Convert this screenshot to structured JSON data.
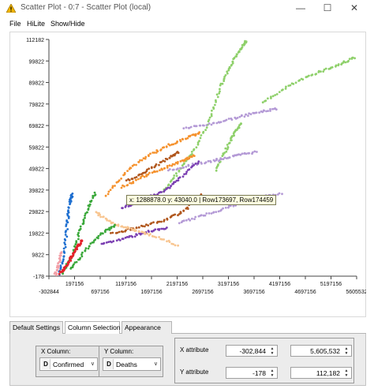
{
  "window": {
    "title": "Scatter Plot - 0:7 - Scatter Plot (local)",
    "minimize_glyph": "—",
    "maximize_glyph": "☐",
    "close_glyph": "✕",
    "title_icon": "warning-triangle-icon"
  },
  "menu": {
    "file": "File",
    "hilite": "HiLite",
    "show_hide": "Show/Hide"
  },
  "plot": {
    "tooltip": "x: 1288878.0 y: 43040.0 | Row173697, Row174459",
    "colors": {
      "red": "#e4202a",
      "green": "#3aa83a",
      "blue": "#1e6fd0",
      "orange": "#f5922e",
      "light_orange": "#f8c590",
      "purple": "#7b3fb2",
      "brown": "#b0561c",
      "pink": "#f2a0a8",
      "light_green": "#8ed06a",
      "light_purple": "#b49ad6"
    }
  },
  "chart_data": {
    "type": "scatter",
    "xlabel": "Confirmed",
    "ylabel": "Deaths",
    "xlim": [
      -302844,
      5605532
    ],
    "ylim": [
      -178,
      112182
    ],
    "x_ticks": [
      "-302844",
      "197156",
      "697156",
      "1197156",
      "1697156",
      "2197156",
      "2697156",
      "3197156",
      "3697156",
      "4197156",
      "4697156",
      "5197156",
      "5605532"
    ],
    "y_ticks": [
      "-178",
      "9822",
      "19822",
      "29822",
      "39822",
      "49822",
      "59822",
      "69822",
      "79822",
      "89822",
      "99822",
      "112182"
    ],
    "series": [
      {
        "color": "#8ed06a",
        "points": [
          [
            1900000,
            40000
          ],
          [
            2200000,
            50000
          ],
          [
            2500000,
            60000
          ],
          [
            2800000,
            75000
          ],
          [
            3000000,
            90000
          ],
          [
            3200000,
            100000
          ],
          [
            3350000,
            107000
          ],
          [
            3500000,
            112000
          ]
        ]
      },
      {
        "color": "#8ed06a",
        "points": [
          [
            3800000,
            82000
          ],
          [
            4300000,
            90000
          ],
          [
            4800000,
            96000
          ],
          [
            5250000,
            100000
          ],
          [
            5600000,
            104000
          ]
        ]
      },
      {
        "color": "#8ed06a",
        "points": [
          [
            2900000,
            50000
          ],
          [
            3100000,
            60000
          ],
          [
            3250000,
            67000
          ],
          [
            3400000,
            73000
          ]
        ]
      },
      {
        "color": "#b49ad6",
        "points": [
          [
            2300000,
            70000
          ],
          [
            2800000,
            72000
          ],
          [
            3300000,
            75000
          ],
          [
            3700000,
            77500
          ],
          [
            4100000,
            79500
          ]
        ]
      },
      {
        "color": "#b49ad6",
        "points": [
          [
            2900000,
            55000
          ],
          [
            3300000,
            57000
          ],
          [
            3700000,
            59000
          ]
        ]
      },
      {
        "color": "#b49ad6",
        "points": [
          [
            2000000,
            50000
          ],
          [
            2500000,
            53000
          ],
          [
            3000000,
            55000
          ]
        ]
      },
      {
        "color": "#b49ad6",
        "points": [
          [
            2200000,
            25000
          ],
          [
            2700000,
            29000
          ],
          [
            3200000,
            33000
          ],
          [
            3700000,
            37000
          ],
          [
            4200000,
            39000
          ]
        ]
      },
      {
        "color": "#f5922e",
        "points": [
          [
            800000,
            38000
          ],
          [
            1200000,
            50000
          ],
          [
            1600000,
            57000
          ],
          [
            2000000,
            62000
          ],
          [
            2400000,
            66000
          ],
          [
            2600000,
            68000
          ]
        ]
      },
      {
        "color": "#f5922e",
        "points": [
          [
            1100000,
            42000
          ],
          [
            1500000,
            47000
          ],
          [
            1900000,
            51000
          ],
          [
            2300000,
            55000
          ],
          [
            2500000,
            57000
          ]
        ]
      },
      {
        "color": "#b0561c",
        "points": [
          [
            1200000,
            45000
          ],
          [
            1600000,
            50000
          ],
          [
            2000000,
            56000
          ],
          [
            2200000,
            59000
          ]
        ]
      },
      {
        "color": "#b0561c",
        "points": [
          [
            900000,
            20000
          ],
          [
            1400000,
            23000
          ],
          [
            1900000,
            26000
          ],
          [
            2300000,
            31000
          ],
          [
            2650000,
            39000
          ]
        ]
      },
      {
        "color": "#7b3fb2",
        "points": [
          [
            1100000,
            32000
          ],
          [
            1500000,
            36000
          ],
          [
            1900000,
            40000
          ],
          [
            2200000,
            46000
          ],
          [
            2600000,
            55000
          ]
        ]
      },
      {
        "color": "#7b3fb2",
        "points": [
          [
            700000,
            15000
          ],
          [
            1200000,
            18000
          ],
          [
            1600000,
            21000
          ],
          [
            2000000,
            22500
          ]
        ]
      },
      {
        "color": "#f8c590",
        "points": [
          [
            600000,
            30000
          ],
          [
            900000,
            25000
          ],
          [
            1300000,
            22000
          ],
          [
            1700000,
            19000
          ],
          [
            2200000,
            14000
          ]
        ]
      },
      {
        "color": "#3aa83a",
        "points": [
          [
            -50000,
            1000
          ],
          [
            150000,
            10000
          ],
          [
            300000,
            22000
          ],
          [
            450000,
            32000
          ],
          [
            600000,
            40000
          ]
        ]
      },
      {
        "color": "#3aa83a",
        "points": [
          [
            100000,
            3000
          ],
          [
            400000,
            12000
          ],
          [
            700000,
            20000
          ],
          [
            1000000,
            24000
          ]
        ]
      },
      {
        "color": "#1e6fd0",
        "points": [
          [
            -100000,
            1000
          ],
          [
            0,
            12000
          ],
          [
            50000,
            25000
          ],
          [
            100000,
            35000
          ],
          [
            150000,
            39000
          ]
        ]
      },
      {
        "color": "#e4202a",
        "points": [
          [
            -100000,
            1000
          ],
          [
            50000,
            5000
          ],
          [
            150000,
            10000
          ],
          [
            250000,
            14000
          ],
          [
            350000,
            17000
          ]
        ]
      },
      {
        "color": "#f2a0a8",
        "points": [
          [
            -180000,
            500
          ],
          [
            -120000,
            5000
          ],
          [
            -60000,
            12000
          ]
        ]
      }
    ]
  },
  "tabs": [
    "Default Settings",
    "Column Selection",
    "Appearance"
  ],
  "column_selection": {
    "x_column_label": "X Column:",
    "x_column_value": "Confirmed",
    "x_column_type": "D",
    "y_column_label": "Y Column:",
    "y_column_value": "Deaths",
    "y_column_type": "D",
    "x_attribute_label": "X attribute",
    "x_attribute_min": "-302,844",
    "x_attribute_max": "5,605,532",
    "y_attribute_label": "Y attribute",
    "y_attribute_min": "-178",
    "y_attribute_max": "112,182"
  }
}
